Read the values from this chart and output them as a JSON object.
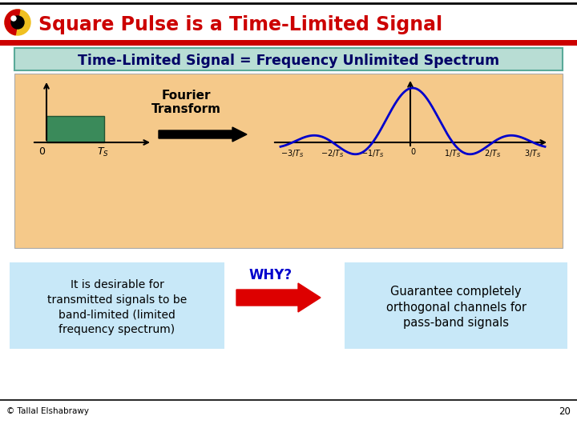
{
  "title": "Square Pulse is a Time-Limited Signal",
  "title_color": "#cc0000",
  "header_bar_color": "#cc0000",
  "subtitle": "Time-Limited Signal = Frequency Unlimited Spectrum",
  "subtitle_bg": "#b8ddd4",
  "diagram_bg": "#f5c98a",
  "fourier_label": "Fourier\nTransform",
  "left_text": "It is desirable for\ntransmitted signals to be\nband-limited (limited\nfrequency spectrum)",
  "left_box_bg": "#c8e8f8",
  "why_text": "WHY?",
  "why_color": "#0000cc",
  "right_text": "Guarantee completely\northogonal channels for\npass-band signals",
  "right_box_bg": "#c8e8f8",
  "footer_text": "© Tallal Elshabrawy",
  "page_number": "20",
  "pulse_color": "#3a8a5a",
  "sinc_color": "#0000cc"
}
